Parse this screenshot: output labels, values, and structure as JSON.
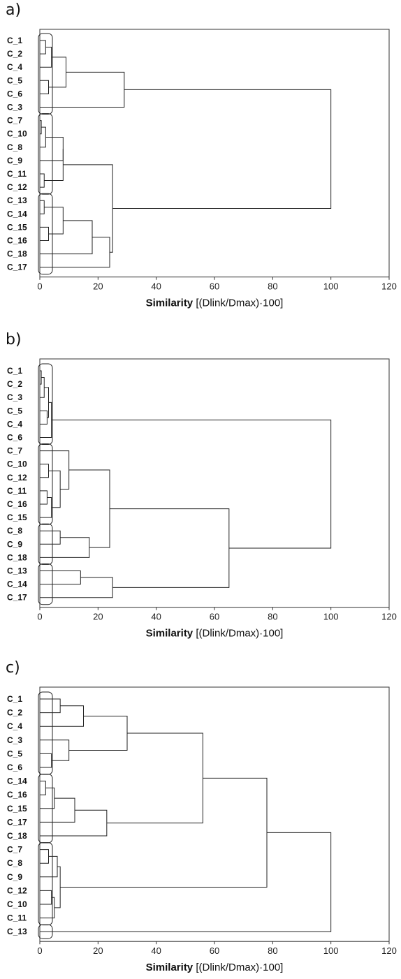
{
  "panels": [
    {
      "label": "a)"
    },
    {
      "label": "b)"
    },
    {
      "label": "c)"
    }
  ],
  "chart_data": [
    {
      "type": "dendrogram",
      "xlabel_bold": "Similarity",
      "xlabel_rest": " [(Dlink/Dmax)·100]",
      "xlim": [
        0,
        120
      ],
      "xticks": [
        0,
        20,
        40,
        60,
        80,
        100,
        120
      ],
      "leaves": [
        "C_1",
        "C_2",
        "C_4",
        "C_5",
        "C_6",
        "C_3",
        "C_7",
        "C_10",
        "C_8",
        "C_9",
        "C_11",
        "C_12",
        "C_13",
        "C_14",
        "C_15",
        "C_16",
        "C_18",
        "C_17"
      ],
      "merges": [
        {
          "ids": [
            0,
            1
          ],
          "height": 2
        },
        {
          "ids": [
            3,
            4
          ],
          "height": 3
        },
        {
          "ids": [
            "m0",
            2
          ],
          "height": 4
        },
        {
          "ids": [
            "m2",
            "m1"
          ],
          "height": 9
        },
        {
          "ids": [
            "m3",
            5
          ],
          "height": 29
        },
        {
          "ids": [
            6,
            7
          ],
          "height": 0.5
        },
        {
          "ids": [
            "m5",
            8
          ],
          "height": 2
        },
        {
          "ids": [
            "m6",
            9
          ],
          "height": 8
        },
        {
          "ids": [
            10,
            11
          ],
          "height": 1.5
        },
        {
          "ids": [
            "m7",
            "m8"
          ],
          "height": 8
        },
        {
          "ids": [
            12,
            13
          ],
          "height": 1.5
        },
        {
          "ids": [
            14,
            15
          ],
          "height": 3
        },
        {
          "ids": [
            "m10",
            "m11"
          ],
          "height": 8
        },
        {
          "ids": [
            "m12",
            16
          ],
          "height": 18
        },
        {
          "ids": [
            "m13",
            17
          ],
          "height": 24
        },
        {
          "ids": [
            "m9",
            "m14"
          ],
          "height": 25
        },
        {
          "ids": [
            "m4",
            "m15"
          ],
          "height": 100
        }
      ],
      "cluster_boxes": [
        [
          0,
          5
        ],
        [
          6,
          11
        ],
        [
          12,
          17
        ]
      ]
    },
    {
      "type": "dendrogram",
      "xlabel_bold": "Similarity",
      "xlabel_rest": " [(Dlink/Dmax)·100]",
      "xlim": [
        0,
        120
      ],
      "xticks": [
        0,
        20,
        40,
        60,
        80,
        100,
        120
      ],
      "leaves": [
        "C_1",
        "C_2",
        "C_3",
        "C_5",
        "C_4",
        "C_6",
        "C_7",
        "C_10",
        "C_12",
        "C_11",
        "C_16",
        "C_15",
        "C_8",
        "C_9",
        "C_18",
        "C_13",
        "C_14",
        "C_17"
      ],
      "merges": [
        {
          "ids": [
            0,
            1
          ],
          "height": 0.5
        },
        {
          "ids": [
            "m0",
            2
          ],
          "height": 1.5
        },
        {
          "ids": [
            3,
            4
          ],
          "height": 2.5
        },
        {
          "ids": [
            "m1",
            "m2"
          ],
          "height": 3
        },
        {
          "ids": [
            "m3",
            5
          ],
          "height": 4
        },
        {
          "ids": [
            7,
            8
          ],
          "height": 3
        },
        {
          "ids": [
            9,
            10
          ],
          "height": 2.5
        },
        {
          "ids": [
            "m6",
            11
          ],
          "height": 4
        },
        {
          "ids": [
            "m5",
            "m7"
          ],
          "height": 7
        },
        {
          "ids": [
            6,
            "m8"
          ],
          "height": 10
        },
        {
          "ids": [
            12,
            13
          ],
          "height": 7
        },
        {
          "ids": [
            "m10",
            14
          ],
          "height": 17
        },
        {
          "ids": [
            "m9",
            "m11"
          ],
          "height": 24
        },
        {
          "ids": [
            15,
            16
          ],
          "height": 14
        },
        {
          "ids": [
            "m13",
            17
          ],
          "height": 25
        },
        {
          "ids": [
            "m12",
            "m14"
          ],
          "height": 65
        },
        {
          "ids": [
            "m4",
            "m15"
          ],
          "height": 100
        }
      ],
      "cluster_boxes": [
        [
          0,
          5
        ],
        [
          6,
          11
        ],
        [
          12,
          14
        ],
        [
          15,
          17
        ]
      ]
    },
    {
      "type": "dendrogram",
      "xlabel_bold": "Similarity",
      "xlabel_rest": " [(Dlink/Dmax)·100]",
      "xlim": [
        0,
        120
      ],
      "xticks": [
        0,
        20,
        40,
        60,
        80,
        100,
        120
      ],
      "leaves": [
        "C_1",
        "C_2",
        "C_4",
        "C_3",
        "C_5",
        "C_6",
        "C_14",
        "C_16",
        "C_15",
        "C_17",
        "C_18",
        "C_7",
        "C_8",
        "C_9",
        "C_12",
        "C_10",
        "C_11",
        "C_13"
      ],
      "merges": [
        {
          "ids": [
            0,
            1
          ],
          "height": 7
        },
        {
          "ids": [
            "m0",
            2
          ],
          "height": 15
        },
        {
          "ids": [
            4,
            5
          ],
          "height": 4
        },
        {
          "ids": [
            3,
            "m2"
          ],
          "height": 10
        },
        {
          "ids": [
            "m1",
            "m3"
          ],
          "height": 30
        },
        {
          "ids": [
            6,
            7
          ],
          "height": 2
        },
        {
          "ids": [
            "m5",
            8
          ],
          "height": 5
        },
        {
          "ids": [
            "m6",
            9
          ],
          "height": 12
        },
        {
          "ids": [
            "m7",
            10
          ],
          "height": 23
        },
        {
          "ids": [
            "m4",
            "m8"
          ],
          "height": 56
        },
        {
          "ids": [
            11,
            12
          ],
          "height": 3
        },
        {
          "ids": [
            "m10",
            13
          ],
          "height": 6
        },
        {
          "ids": [
            14,
            15
          ],
          "height": 4
        },
        {
          "ids": [
            "m12",
            16
          ],
          "height": 5
        },
        {
          "ids": [
            "m11",
            "m13"
          ],
          "height": 7
        },
        {
          "ids": [
            "m9",
            "m14"
          ],
          "height": 78
        },
        {
          "ids": [
            "m15",
            17
          ],
          "height": 100
        }
      ],
      "cluster_boxes": [
        [
          0,
          5
        ],
        [
          6,
          10
        ],
        [
          11,
          16
        ],
        [
          17,
          17
        ]
      ]
    }
  ]
}
